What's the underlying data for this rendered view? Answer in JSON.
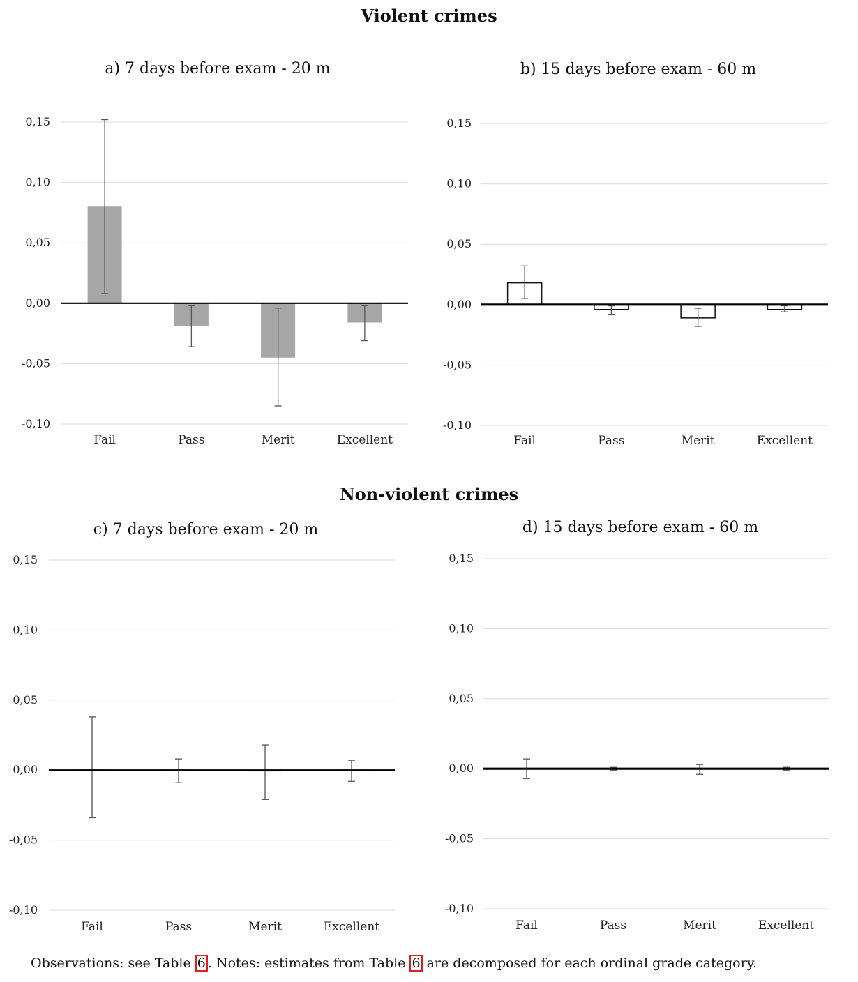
{
  "section_titles": {
    "violent": "Violent crimes",
    "nonviolent": "Non-violent crimes"
  },
  "caption": {
    "part1": "Observations: see Table ",
    "ref1": "6",
    "part2": ". Notes: estimates from Table ",
    "ref2": "6",
    "part3": " are decomposed for each ordinal grade category."
  },
  "colors": {
    "bar_gray": "#a6a6a6",
    "bar_white": "#ffffff",
    "bar_edge_dark": "#111111",
    "grid": "#d9d9d9",
    "error_bar": "#555555",
    "axis_zero": "#000000",
    "ref_highlight": "#e11d1d"
  },
  "chart_data": [
    {
      "id": "a",
      "type": "bar",
      "title": "a) 7 days before exam - 20 m",
      "categories": [
        "Fail",
        "Pass",
        "Merit",
        "Excellent"
      ],
      "values": [
        0.08,
        -0.019,
        -0.045,
        -0.016
      ],
      "error_low": [
        0.008,
        -0.036,
        -0.085,
        -0.031
      ],
      "error_high": [
        0.152,
        -0.002,
        -0.004,
        -0.002
      ],
      "yticks": [
        0.15,
        0.1,
        0.05,
        0.0,
        -0.05,
        -0.1
      ],
      "ytick_labels": [
        "0,15",
        "0,10",
        "0,05",
        "0,00",
        "-0,05",
        "-0,10"
      ],
      "ylim": [
        -0.1,
        0.15
      ],
      "bar_style": "gray",
      "zero_line": "medium",
      "grid": true
    },
    {
      "id": "b",
      "type": "bar",
      "title": "b) 15 days before exam - 60 m",
      "categories": [
        "Fail",
        "Pass",
        "Merit",
        "Excellent"
      ],
      "values": [
        0.018,
        -0.004,
        -0.011,
        -0.004
      ],
      "error_low": [
        0.005,
        -0.008,
        -0.018,
        -0.006
      ],
      "error_high": [
        0.032,
        -0.001,
        -0.003,
        -0.001
      ],
      "yticks": [
        0.15,
        0.1,
        0.05,
        0.0,
        -0.05,
        -0.1
      ],
      "ytick_labels": [
        "0,15",
        "0,10",
        "0,05",
        "0,00",
        "-0,05",
        "-0,10"
      ],
      "ylim": [
        -0.1,
        0.15
      ],
      "bar_style": "white",
      "zero_line": "thick",
      "grid": true
    },
    {
      "id": "c",
      "type": "bar",
      "title": "c) 7 days before exam - 20 m",
      "categories": [
        "Fail",
        "Pass",
        "Merit",
        "Excellent"
      ],
      "values": [
        0.001,
        0.0,
        -0.001,
        0.0
      ],
      "error_low": [
        -0.034,
        -0.009,
        -0.021,
        -0.008
      ],
      "error_high": [
        0.038,
        0.008,
        0.018,
        0.007
      ],
      "yticks": [
        0.15,
        0.1,
        0.05,
        0.0,
        -0.05,
        -0.1
      ],
      "ytick_labels": [
        "0,15",
        "0,10",
        "0,05",
        "0,00",
        "-0,05",
        "-0,10"
      ],
      "ylim": [
        -0.1,
        0.15
      ],
      "bar_style": "gray",
      "zero_line": "medium",
      "grid": true
    },
    {
      "id": "d",
      "type": "bar",
      "title": "d) 15 days before exam - 60 m",
      "categories": [
        "Fail",
        "Pass",
        "Merit",
        "Excellent"
      ],
      "values": [
        0.0,
        0.0,
        0.0,
        0.0
      ],
      "error_low": [
        -0.007,
        -0.001,
        -0.004,
        -0.001
      ],
      "error_high": [
        0.007,
        0.001,
        0.003,
        0.001
      ],
      "yticks": [
        0.15,
        0.1,
        0.05,
        0.0,
        -0.05,
        -0.1
      ],
      "ytick_labels": [
        "0,15",
        "0,10",
        "0,05",
        "0,00",
        "-0,05",
        "-0,10"
      ],
      "ylim": [
        -0.1,
        0.15
      ],
      "bar_style": "dark",
      "zero_line": "thick",
      "grid": true
    }
  ]
}
